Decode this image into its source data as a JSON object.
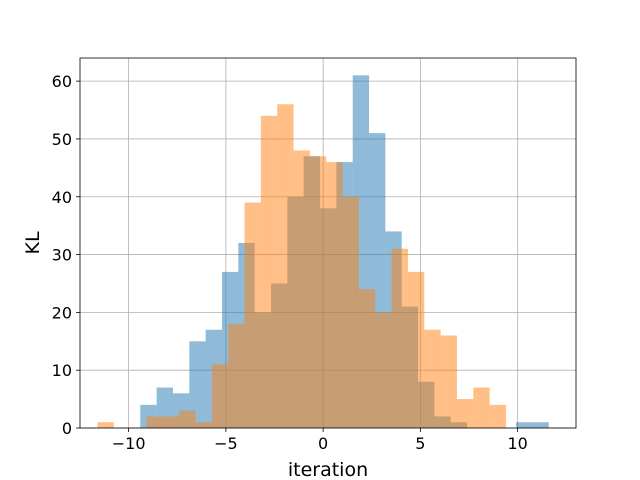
{
  "chart_data": {
    "type": "histogram",
    "title": "",
    "xlabel": "iteration",
    "ylabel": "KL",
    "xlim": [
      -12.5,
      13.0
    ],
    "ylim": [
      0,
      64
    ],
    "xticks": [
      -10,
      -5,
      0,
      5,
      10
    ],
    "xtick_labels": [
      "−10",
      "−5",
      "0",
      "5",
      "10"
    ],
    "yticks": [
      0,
      10,
      20,
      30,
      40,
      50,
      60
    ],
    "ytick_labels": [
      "0",
      "10",
      "20",
      "30",
      "40",
      "50",
      "60"
    ],
    "grid": true,
    "legend": false,
    "bars_overlap": true,
    "series": [
      {
        "color": "#1f77b4",
        "opacity": 0.5,
        "bin_edges": [
          -9.4,
          -8.56,
          -7.72,
          -6.88,
          -6.04,
          -5.2,
          -4.36,
          -3.52,
          -2.68,
          -1.84,
          -1.0,
          -0.16,
          0.68,
          1.52,
          2.36,
          3.2,
          4.04,
          4.88,
          5.72,
          6.56,
          7.4,
          8.24,
          9.08,
          9.92,
          10.76,
          11.6
        ],
        "counts": [
          4,
          7,
          6,
          15,
          17,
          27,
          32,
          20,
          25,
          40,
          47,
          38,
          46,
          61,
          51,
          34,
          21,
          8,
          2,
          1,
          0,
          0,
          0,
          1,
          1
        ]
      },
      {
        "color": "#ff7f0e",
        "opacity": 0.5,
        "bin_edges": [
          -11.6,
          -10.76,
          -9.92,
          -9.08,
          -8.24,
          -7.4,
          -6.56,
          -5.72,
          -4.88,
          -4.04,
          -3.2,
          -2.36,
          -1.52,
          -0.68,
          0.16,
          1.0,
          1.84,
          2.68,
          3.52,
          4.36,
          5.2,
          6.04,
          6.88,
          7.72,
          8.56,
          9.4
        ],
        "counts": [
          1,
          0,
          0,
          2,
          2,
          3,
          1,
          11,
          18,
          39,
          54,
          56,
          48,
          47,
          46,
          40,
          24,
          20,
          31,
          27,
          17,
          16,
          5,
          7,
          4
        ]
      }
    ]
  }
}
